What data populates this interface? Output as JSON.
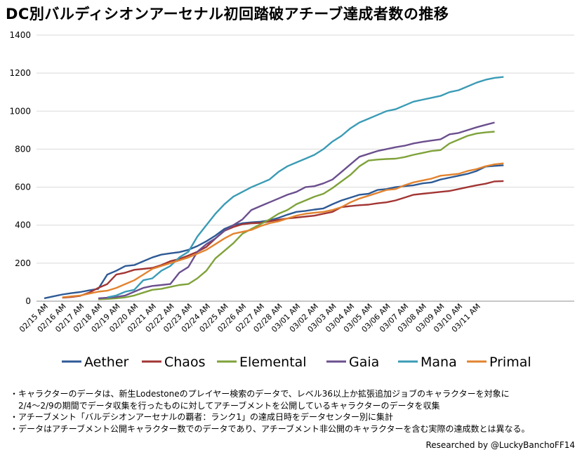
{
  "chart_data": {
    "type": "line",
    "title": "DC別バルディシオンアーセナル初回踏破アチーブ達成者数の推移",
    "xlabel": "",
    "ylabel": "",
    "ylim": [
      0,
      1400
    ],
    "yticks": [
      0,
      200,
      400,
      600,
      800,
      1000,
      1200,
      1400
    ],
    "grid": true,
    "legend_position": "bottom",
    "x_tick_labels": [
      "02/15 AM",
      "02/16 AM",
      "02/17 AM",
      "02/18 AM",
      "02/19 AM",
      "02/20 AM",
      "02/21 AM",
      "02/22 AM",
      "02/23 AM",
      "02/24 AM",
      "02/25 AM",
      "02/26 AM",
      "02/27 AM",
      "02/28 AM",
      "03/01 AM",
      "03/02 AM",
      "03/03 AM",
      "03/04 AM",
      "03/05 AM",
      "03/06 AM",
      "03/07 AM",
      "03/08 AM",
      "03/09 AM",
      "03/10 AM",
      "03/11 AM"
    ],
    "x_points_per_day": 2,
    "series": [
      {
        "name": "Aether",
        "color": "#2E5A95",
        "start_index": 0,
        "values": [
          15,
          25,
          35,
          42,
          48,
          57,
          65,
          140,
          160,
          185,
          190,
          210,
          230,
          245,
          252,
          258,
          270,
          290,
          315,
          345,
          380,
          400,
          410,
          415,
          418,
          425,
          438,
          455,
          470,
          475,
          482,
          488,
          510,
          530,
          545,
          560,
          565,
          585,
          590,
          600,
          605,
          610,
          620,
          625,
          640,
          650,
          660,
          670,
          685,
          708,
          712,
          715
        ]
      },
      {
        "name": "Chaos",
        "color": "#A23533",
        "start_index": 2,
        "values": [
          18,
          22,
          28,
          45,
          70,
          90,
          140,
          150,
          165,
          170,
          175,
          190,
          210,
          222,
          240,
          260,
          285,
          330,
          370,
          390,
          405,
          410,
          412,
          420,
          428,
          435,
          440,
          445,
          450,
          460,
          470,
          495,
          500,
          505,
          508,
          515,
          520,
          530,
          545,
          560,
          565,
          570,
          575,
          580,
          590,
          600,
          610,
          618,
          630,
          632
        ]
      },
      {
        "name": "Elemental",
        "color": "#7FA23A",
        "start_index": 6,
        "values": [
          10,
          12,
          15,
          20,
          30,
          45,
          60,
          65,
          75,
          85,
          90,
          120,
          160,
          225,
          265,
          305,
          355,
          380,
          405,
          430,
          460,
          480,
          510,
          530,
          550,
          565,
          595,
          630,
          665,
          710,
          740,
          745,
          748,
          750,
          758,
          770,
          780,
          790,
          795,
          830,
          850,
          870,
          882,
          888,
          892
        ]
      },
      {
        "name": "Gaia",
        "color": "#6B4F8E",
        "start_index": 6,
        "values": [
          15,
          18,
          22,
          30,
          50,
          70,
          80,
          85,
          90,
          150,
          180,
          260,
          300,
          330,
          370,
          400,
          430,
          480,
          500,
          520,
          540,
          560,
          575,
          600,
          605,
          620,
          640,
          680,
          720,
          760,
          775,
          790,
          800,
          810,
          818,
          830,
          838,
          845,
          852,
          878,
          885,
          900,
          915,
          928,
          940
        ]
      },
      {
        "name": "Mana",
        "color": "#3A9BB5",
        "start_index": 7,
        "values": [
          20,
          30,
          50,
          60,
          110,
          120,
          160,
          185,
          230,
          260,
          340,
          400,
          460,
          510,
          550,
          575,
          600,
          620,
          640,
          680,
          710,
          730,
          750,
          770,
          800,
          840,
          870,
          910,
          940,
          960,
          980,
          1000,
          1010,
          1030,
          1050,
          1060,
          1070,
          1080,
          1100,
          1110,
          1130,
          1150,
          1165,
          1175,
          1180
        ]
      },
      {
        "name": "Primal",
        "color": "#E2832F",
        "start_index": 2,
        "values": [
          20,
          25,
          30,
          40,
          50,
          55,
          70,
          90,
          110,
          140,
          170,
          185,
          200,
          215,
          230,
          250,
          270,
          300,
          330,
          355,
          365,
          375,
          395,
          410,
          420,
          435,
          450,
          460,
          465,
          470,
          480,
          495,
          520,
          540,
          555,
          570,
          585,
          590,
          610,
          625,
          635,
          645,
          660,
          665,
          670,
          685,
          695,
          710,
          720,
          725
        ]
      }
    ]
  },
  "notes": [
    "・キャラクターのデータは、新生Lodestoneのプレイヤー検索のデータで、レベル36以上か拡張追加ジョブのキャラクターを対象に",
    "　2/4～2/9の期間でデータ収集を行ったものに対してアチーブメントを公開しているキャラクターのデータを収集",
    "・アチーブメント「バルデシオンアーセナルの覇者：ランク1」の達成日時をデータセンター別に集計",
    "・データはアチーブメント公開キャラクター数でのデータであり、アチーブメント非公開のキャラクターを含む実際の達成数とは異なる。"
  ],
  "credit": "Researched by @LuckyBanchoFF14"
}
